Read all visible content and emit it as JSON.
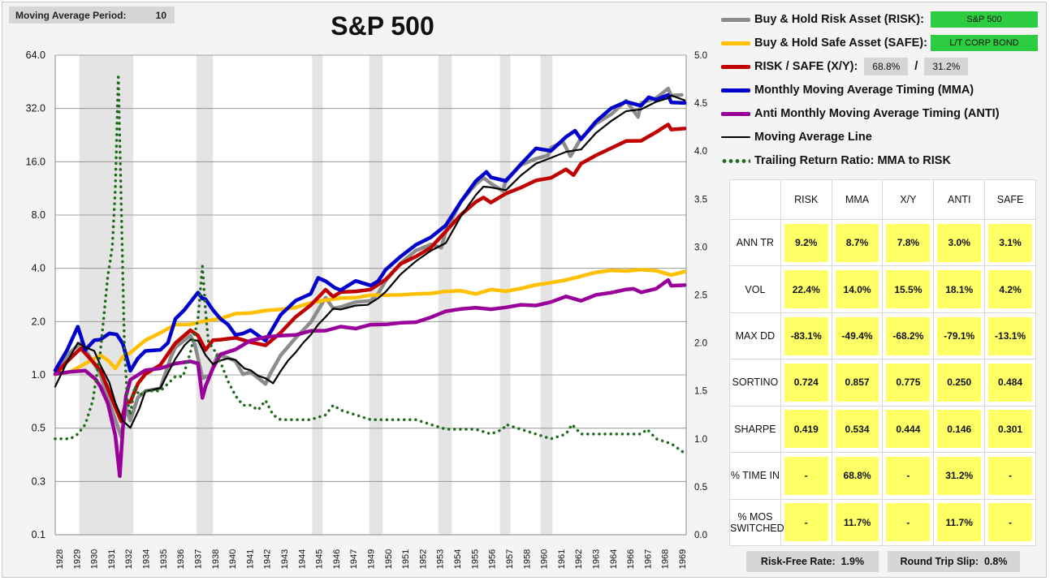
{
  "moving_average": {
    "label": "Moving Average Period:",
    "value": "10"
  },
  "legend": {
    "risk": {
      "label": "Buy & Hold Risk Asset (RISK):",
      "badge": "S&P 500",
      "color": "#8c8c8c"
    },
    "safe": {
      "label": "Buy & Hold Safe Asset (SAFE):",
      "badge": "L/T CORP BOND",
      "color": "#ffc000"
    },
    "xy": {
      "label": "RISK / SAFE (X/Y):",
      "risk_pct": "68.8%",
      "sep": "/",
      "safe_pct": "31.2%",
      "color": "#c00000"
    },
    "mma": {
      "label": "Monthly Moving Average Timing (MMA)",
      "color": "#0000cc"
    },
    "anti": {
      "label": "Anti Monthly Moving Average Timing (ANTI)",
      "color": "#990099"
    },
    "ma": {
      "label": "Moving Average Line",
      "color": "#000000"
    },
    "ratio": {
      "label": "Trailing Return Ratio: MMA to RISK",
      "color": "#1e6b1e"
    }
  },
  "stats": {
    "columns": [
      "RISK",
      "MMA",
      "X/Y",
      "ANTI",
      "SAFE"
    ],
    "rows": [
      {
        "label": "ANN TR",
        "values": [
          "9.2%",
          "8.7%",
          "7.8%",
          "3.0%",
          "3.1%"
        ]
      },
      {
        "label": "VOL",
        "values": [
          "22.4%",
          "14.0%",
          "15.5%",
          "18.1%",
          "4.2%"
        ]
      },
      {
        "label": "MAX DD",
        "values": [
          "-83.1%",
          "-49.4%",
          "-68.2%",
          "-79.1%",
          "-13.1%"
        ]
      },
      {
        "label": "SORTINO",
        "values": [
          "0.724",
          "0.857",
          "0.775",
          "0.250",
          "0.484"
        ]
      },
      {
        "label": "SHARPE",
        "values": [
          "0.419",
          "0.534",
          "0.444",
          "0.146",
          "0.301"
        ]
      },
      {
        "label": "% TIME IN",
        "values": [
          "-",
          "68.8%",
          "-",
          "31.2%",
          "-"
        ]
      },
      {
        "label": "% MOS SWITCHED",
        "values": [
          "-",
          "11.7%",
          "-",
          "11.7%",
          "-"
        ]
      }
    ]
  },
  "footer": {
    "risk_free": {
      "label": "Risk-Free Rate:",
      "value": "1.9%"
    },
    "slip": {
      "label": "Round Trip Slip:",
      "value": "0.8%"
    }
  },
  "chart_data": {
    "type": "line",
    "title": "S&P 500",
    "y_scale": "log2",
    "ylim": [
      0.1,
      64
    ],
    "y_ticks": [
      "0.1",
      "0.3",
      "0.5",
      "1.0",
      "2.0",
      "4.0",
      "8.0",
      "16.0",
      "32.0",
      "64.0"
    ],
    "y_tick_values": [
      0.125,
      0.25,
      0.5,
      1,
      2,
      4,
      8,
      16,
      32,
      64
    ],
    "y2lim": [
      0.0,
      5.0
    ],
    "y2_ticks": [
      "0.0",
      "0.5",
      "1.0",
      "1.5",
      "2.0",
      "2.5",
      "3.0",
      "3.5",
      "4.0",
      "4.5",
      "5.0"
    ],
    "xlim": [
      1928,
      1970
    ],
    "x_ticks": [
      "1928",
      "1929",
      "1930",
      "1931",
      "1932",
      "1934",
      "1935",
      "1936",
      "1937",
      "1938",
      "1940",
      "1941",
      "1942",
      "1943",
      "1944",
      "1945",
      "1946",
      "1947",
      "1949",
      "1950",
      "1951",
      "1952",
      "1953",
      "1954",
      "1955",
      "1956",
      "1957",
      "1958",
      "1960",
      "1961",
      "1962",
      "1963",
      "1964",
      "1966",
      "1967",
      "1968",
      "1969"
    ],
    "recessions": [
      [
        1929.6,
        1933.2
      ],
      [
        1937.4,
        1938.5
      ],
      [
        1945.1,
        1945.8
      ],
      [
        1948.9,
        1949.8
      ],
      [
        1953.5,
        1954.4
      ],
      [
        1957.6,
        1958.3
      ],
      [
        1960.3,
        1961.1
      ]
    ],
    "series": [
      {
        "name": "RISK",
        "axis": "left",
        "color": "#8c8c8c",
        "width": 4.5,
        "x": [
          1928,
          1929,
          1929.7,
          1930.5,
          1931,
          1931.5,
          1932,
          1932.4,
          1932.7,
          1933,
          1933.5,
          1934,
          1935,
          1935.7,
          1936,
          1937,
          1937.3,
          1937.8,
          1938.3,
          1938.8,
          1939.5,
          1940,
          1940.5,
          1941,
          1941.5,
          1942,
          1942.3,
          1943,
          1944,
          1945,
          1946,
          1946.5,
          1947,
          1948,
          1949,
          1949.5,
          1950,
          1951,
          1952,
          1953,
          1953.7,
          1954,
          1955,
          1956,
          1956.5,
          1957,
          1957.8,
          1958,
          1959,
          1960,
          1960.8,
          1961,
          1961.8,
          1962.3,
          1963,
          1964,
          1965,
          1966,
          1966.8,
          1967,
          1968,
          1968.8,
          1969,
          1969.7
        ],
        "y": [
          1.0,
          1.35,
          1.5,
          1.2,
          1.0,
          0.75,
          0.55,
          0.45,
          0.65,
          0.55,
          0.75,
          0.8,
          0.85,
          1.25,
          1.45,
          1.65,
          1.5,
          0.95,
          1.0,
          1.3,
          1.25,
          1.2,
          1.0,
          1.05,
          0.95,
          0.9,
          1.0,
          1.3,
          1.6,
          2.0,
          2.7,
          2.4,
          2.4,
          2.6,
          2.6,
          2.9,
          3.4,
          4.3,
          5.0,
          5.5,
          5.2,
          6.5,
          9.5,
          12,
          13,
          12,
          11,
          12.5,
          15.5,
          16.5,
          17.5,
          19,
          21,
          17,
          22,
          26,
          30,
          35,
          29,
          34,
          37,
          41,
          38,
          38
        ]
      },
      {
        "name": "SAFE",
        "axis": "left",
        "color": "#ffc000",
        "width": 4.5,
        "x": [
          1928,
          1929,
          1930,
          1931,
          1931.5,
          1932,
          1932.5,
          1933,
          1934,
          1935,
          1936,
          1937,
          1938,
          1939,
          1940,
          1941,
          1942,
          1943,
          1944,
          1945,
          1946,
          1947,
          1948,
          1949,
          1950,
          1951,
          1952,
          1953,
          1954,
          1955,
          1956,
          1957,
          1958,
          1959,
          1960,
          1961,
          1962,
          1963,
          1964,
          1965,
          1966,
          1967,
          1968,
          1969,
          1969.9
        ],
        "y": [
          1.0,
          1.05,
          1.15,
          1.3,
          1.2,
          1.1,
          1.25,
          1.35,
          1.55,
          1.75,
          1.9,
          1.95,
          2.0,
          2.1,
          2.2,
          2.25,
          2.3,
          2.35,
          2.4,
          2.55,
          2.65,
          2.7,
          2.75,
          2.8,
          2.85,
          2.8,
          2.9,
          2.85,
          3.0,
          2.95,
          2.9,
          3.0,
          3.0,
          3.05,
          3.25,
          3.3,
          3.45,
          3.6,
          3.8,
          3.9,
          3.85,
          3.95,
          3.85,
          3.7,
          3.8
        ]
      },
      {
        "name": "X/Y",
        "axis": "left",
        "color": "#c00000",
        "width": 4.5,
        "x": [
          1928,
          1929,
          1929.7,
          1930.5,
          1931,
          1931.5,
          1932,
          1932.4,
          1932.7,
          1933,
          1933.5,
          1934,
          1935,
          1936,
          1937,
          1937.5,
          1938,
          1938.5,
          1939,
          1940,
          1941,
          1942,
          1943,
          1944,
          1945,
          1946,
          1946.5,
          1947,
          1948,
          1949,
          1950,
          1951,
          1952,
          1953,
          1954,
          1955,
          1956,
          1956.5,
          1957,
          1958,
          1959,
          1960,
          1961,
          1962,
          1962.5,
          1963,
          1964,
          1965,
          1966,
          1967,
          1968,
          1968.8,
          1969,
          1969.9
        ],
        "y": [
          1.0,
          1.25,
          1.4,
          1.2,
          1.05,
          0.85,
          0.65,
          0.55,
          0.7,
          0.7,
          0.9,
          1.0,
          1.15,
          1.5,
          1.8,
          1.65,
          1.4,
          1.55,
          1.6,
          1.6,
          1.55,
          1.45,
          1.75,
          2.1,
          2.5,
          3.0,
          2.8,
          2.9,
          3.0,
          3.0,
          3.5,
          4.2,
          4.7,
          5.2,
          6.5,
          8.0,
          9.5,
          10.0,
          9.5,
          10.5,
          11.5,
          12.5,
          13.0,
          14.5,
          13.5,
          15.5,
          17.5,
          19.0,
          21.0,
          21.0,
          23.5,
          26.0,
          24.5,
          24.5
        ]
      },
      {
        "name": "MMA",
        "axis": "left",
        "color": "#0000cc",
        "width": 4.5,
        "x": [
          1928,
          1928.8,
          1929.5,
          1930,
          1930.6,
          1931,
          1931.6,
          1932.1,
          1932.5,
          1933,
          1933.5,
          1934,
          1935,
          1935.5,
          1936,
          1936.6,
          1937,
          1937.5,
          1937.8,
          1938,
          1938.5,
          1939,
          1939.5,
          1940,
          1940.5,
          1941,
          1942,
          1943,
          1944,
          1945,
          1945.5,
          1946,
          1946.6,
          1947,
          1948,
          1949,
          1949.5,
          1950,
          1951,
          1952,
          1953,
          1954,
          1955,
          1956,
          1956.7,
          1957,
          1958,
          1959,
          1960,
          1961,
          1962,
          1962.6,
          1963,
          1964,
          1965,
          1966,
          1967,
          1967.5,
          1968,
          1968.8,
          1969,
          1969.9
        ],
        "y": [
          1.05,
          1.4,
          1.85,
          1.4,
          1.55,
          1.6,
          1.7,
          1.7,
          1.5,
          1.05,
          1.25,
          1.35,
          1.4,
          1.5,
          2.1,
          2.3,
          2.6,
          2.9,
          2.7,
          2.7,
          2.3,
          2.1,
          1.9,
          1.7,
          1.7,
          1.8,
          1.55,
          2.2,
          2.6,
          2.9,
          3.5,
          3.4,
          3.1,
          3.0,
          3.4,
          3.2,
          3.4,
          3.9,
          4.7,
          5.4,
          6.0,
          7.0,
          9.5,
          12.5,
          14.0,
          13.0,
          12.5,
          15.5,
          19.0,
          18.5,
          22.0,
          24.0,
          21.5,
          27.0,
          32.0,
          35.0,
          33.0,
          37.0,
          36.0,
          38.0,
          35.0,
          34.0
        ]
      },
      {
        "name": "ANTI",
        "axis": "left",
        "color": "#990099",
        "width": 4.5,
        "x": [
          1928,
          1929,
          1930,
          1930.7,
          1931,
          1931.5,
          1932,
          1932.3,
          1932.5,
          1932.7,
          1933,
          1934,
          1935,
          1936,
          1937,
          1937.5,
          1937.8,
          1938,
          1938.5,
          1939,
          1940,
          1941,
          1942,
          1943,
          1944,
          1945,
          1946,
          1947,
          1948,
          1949,
          1950,
          1951,
          1952,
          1953,
          1954,
          1955,
          1956,
          1957,
          1958,
          1959,
          1960,
          1961,
          1962,
          1963,
          1964,
          1965,
          1966,
          1966.5,
          1967,
          1968,
          1968.8,
          1969,
          1969.9
        ],
        "y": [
          1.0,
          1.05,
          1.05,
          0.95,
          0.85,
          0.7,
          0.45,
          0.27,
          0.5,
          0.75,
          0.95,
          1.05,
          1.1,
          1.15,
          1.2,
          1.15,
          0.75,
          0.85,
          1.1,
          1.3,
          1.4,
          1.55,
          1.65,
          1.65,
          1.7,
          1.75,
          1.8,
          1.85,
          1.85,
          1.9,
          1.95,
          1.95,
          2.0,
          2.1,
          2.3,
          2.35,
          2.4,
          2.35,
          2.4,
          2.5,
          2.45,
          2.6,
          2.75,
          2.65,
          2.8,
          2.95,
          3.0,
          3.1,
          2.9,
          3.1,
          3.4,
          3.2,
          3.2
        ]
      },
      {
        "name": "MA",
        "axis": "left",
        "color": "#000000",
        "width": 2.2,
        "x": [
          1928,
          1928.8,
          1929.5,
          1930,
          1930.6,
          1931,
          1931.6,
          1932,
          1932.5,
          1933,
          1933.6,
          1934,
          1935,
          1935.6,
          1936,
          1936.6,
          1937,
          1937.5,
          1938,
          1938.5,
          1939,
          1939.5,
          1940,
          1940.6,
          1941,
          1941.5,
          1942,
          1942.5,
          1943,
          1943.5,
          1944,
          1944.5,
          1945,
          1945.5,
          1946,
          1946.5,
          1947,
          1948,
          1948.8,
          1949.5,
          1950,
          1951,
          1952,
          1953,
          1954,
          1955,
          1956,
          1956.5,
          1957,
          1958,
          1959,
          1960,
          1961,
          1962,
          1963,
          1964,
          1965,
          1966,
          1967,
          1968,
          1968.8,
          1969,
          1969.9
        ],
        "y": [
          0.85,
          1.2,
          1.5,
          1.45,
          1.35,
          1.15,
          0.9,
          0.7,
          0.55,
          0.5,
          0.65,
          0.8,
          0.85,
          1.05,
          1.25,
          1.45,
          1.6,
          1.55,
          1.3,
          1.15,
          1.2,
          1.25,
          1.2,
          1.1,
          1.05,
          1.0,
          0.95,
          0.9,
          1.05,
          1.2,
          1.35,
          1.5,
          1.7,
          1.9,
          2.15,
          2.35,
          2.35,
          2.45,
          2.5,
          2.7,
          2.95,
          3.7,
          4.4,
          5.0,
          5.6,
          7.8,
          10.5,
          11.5,
          11.5,
          11.0,
          13.5,
          15.5,
          17.0,
          18.0,
          19.0,
          23.0,
          27.5,
          30.5,
          32.0,
          34.5,
          37.0,
          37.5,
          36.0
        ]
      },
      {
        "name": "RATIO",
        "axis": "right",
        "color": "#1e6b1e",
        "width": 3.5,
        "dotted": true,
        "x": [
          1928,
          1929,
          1929.5,
          1930,
          1930.5,
          1931,
          1931.5,
          1931.8,
          1932,
          1932.2,
          1932.4,
          1932.6,
          1932.8,
          1933,
          1933.3,
          1933.6,
          1934,
          1935,
          1936,
          1936.5,
          1937,
          1937.5,
          1937.8,
          1938,
          1938.2,
          1938.5,
          1939,
          1939.5,
          1940,
          1940.5,
          1941,
          1941.5,
          1942,
          1942.5,
          1943,
          1944,
          1945,
          1946,
          1946.5,
          1947,
          1948,
          1949,
          1950,
          1951,
          1952,
          1953,
          1954,
          1955,
          1956,
          1957,
          1957.8,
          1958,
          1959,
          1960,
          1961,
          1962,
          1962.4,
          1963,
          1964,
          1965,
          1966,
          1967,
          1967.4,
          1968,
          1969,
          1969.9
        ],
        "y": [
          1.0,
          1.0,
          1.05,
          1.15,
          1.4,
          1.9,
          2.7,
          3.0,
          3.6,
          4.8,
          3.4,
          2.0,
          1.4,
          1.25,
          1.55,
          1.45,
          1.5,
          1.5,
          1.65,
          1.65,
          1.9,
          2.25,
          2.8,
          2.35,
          2.0,
          1.95,
          1.8,
          1.6,
          1.45,
          1.35,
          1.35,
          1.3,
          1.4,
          1.25,
          1.2,
          1.2,
          1.2,
          1.25,
          1.35,
          1.3,
          1.25,
          1.2,
          1.2,
          1.2,
          1.2,
          1.15,
          1.1,
          1.1,
          1.1,
          1.05,
          1.1,
          1.15,
          1.1,
          1.05,
          1.0,
          1.05,
          1.15,
          1.05,
          1.05,
          1.05,
          1.05,
          1.05,
          1.1,
          1.0,
          0.95,
          0.85
        ]
      }
    ]
  }
}
